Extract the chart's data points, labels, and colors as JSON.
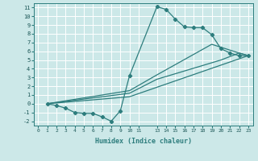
{
  "xlabel": "Humidex (Indice chaleur)",
  "ylabel": "",
  "bg_color": "#cce8e8",
  "grid_color": "#ffffff",
  "line_color": "#2d7d7d",
  "xlim": [
    -0.5,
    23.5
  ],
  "ylim": [
    -2.5,
    11.5
  ],
  "xticks": [
    0,
    1,
    2,
    3,
    4,
    5,
    6,
    7,
    8,
    9,
    10,
    11,
    13,
    14,
    15,
    16,
    17,
    18,
    19,
    20,
    21,
    22,
    23
  ],
  "yticks": [
    -2,
    -1,
    0,
    1,
    2,
    3,
    4,
    5,
    6,
    7,
    8,
    9,
    10,
    11
  ],
  "line1_x": [
    1,
    2,
    3,
    4,
    5,
    6,
    7,
    8,
    9,
    10,
    13,
    14,
    15,
    16,
    17,
    18,
    19,
    20,
    21,
    22,
    23
  ],
  "line1_y": [
    0,
    -0.2,
    -0.5,
    -1.0,
    -1.1,
    -1.1,
    -1.5,
    -2.0,
    -0.8,
    3.2,
    11.1,
    10.8,
    9.7,
    8.8,
    8.7,
    8.7,
    7.9,
    6.3,
    5.8,
    5.5,
    5.5
  ],
  "line2_x": [
    1,
    10,
    13,
    19,
    22,
    23
  ],
  "line2_y": [
    0,
    1.5,
    3.3,
    6.8,
    5.8,
    5.5
  ],
  "line3_x": [
    1,
    10,
    13,
    20,
    22,
    23
  ],
  "line3_y": [
    0,
    1.2,
    2.8,
    5.0,
    5.8,
    5.5
  ],
  "line4_x": [
    1,
    10,
    23
  ],
  "line4_y": [
    0,
    0.8,
    5.5
  ]
}
